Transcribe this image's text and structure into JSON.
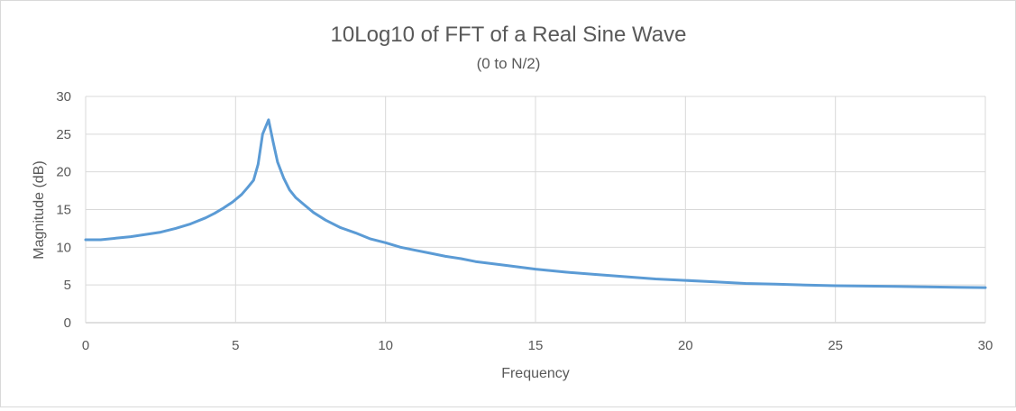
{
  "chart_data": {
    "type": "line",
    "title": "10Log10 of FFT of a Real Sine Wave",
    "subtitle": "(0 to N/2)",
    "xlabel": "Frequency",
    "ylabel": "Magnitude (dB)",
    "xlim": [
      0,
      30
    ],
    "ylim": [
      0,
      30
    ],
    "x_ticks": [
      "0",
      "5",
      "10",
      "15",
      "20",
      "25",
      "30"
    ],
    "y_ticks": [
      "0",
      "5",
      "10",
      "15",
      "20",
      "25",
      "30"
    ],
    "grid": true,
    "legend": "none",
    "series": [
      {
        "color": "#5b9bd5",
        "points": [
          [
            0,
            11.0
          ],
          [
            0.5,
            11.0
          ],
          [
            1.0,
            11.2
          ],
          [
            1.5,
            11.4
          ],
          [
            2.0,
            11.7
          ],
          [
            2.5,
            12.0
          ],
          [
            3.0,
            12.5
          ],
          [
            3.5,
            13.1
          ],
          [
            4.0,
            13.9
          ],
          [
            4.3,
            14.5
          ],
          [
            4.6,
            15.2
          ],
          [
            4.9,
            16.0
          ],
          [
            5.2,
            17.0
          ],
          [
            5.4,
            17.9
          ],
          [
            5.6,
            18.9
          ],
          [
            5.75,
            21.0
          ],
          [
            5.9,
            25.0
          ],
          [
            6.1,
            26.9
          ],
          [
            6.25,
            24.0
          ],
          [
            6.4,
            21.3
          ],
          [
            6.6,
            19.2
          ],
          [
            6.8,
            17.6
          ],
          [
            7.0,
            16.6
          ],
          [
            7.3,
            15.6
          ],
          [
            7.6,
            14.6
          ],
          [
            8.0,
            13.6
          ],
          [
            8.5,
            12.6
          ],
          [
            9.0,
            11.9
          ],
          [
            9.5,
            11.1
          ],
          [
            10.0,
            10.6
          ],
          [
            10.5,
            10.0
          ],
          [
            11.0,
            9.6
          ],
          [
            11.5,
            9.2
          ],
          [
            12.0,
            8.8
          ],
          [
            12.5,
            8.5
          ],
          [
            13.0,
            8.1
          ],
          [
            14.0,
            7.6
          ],
          [
            15.0,
            7.1
          ],
          [
            16.0,
            6.7
          ],
          [
            17.0,
            6.4
          ],
          [
            18.0,
            6.1
          ],
          [
            19.0,
            5.8
          ],
          [
            20.0,
            5.6
          ],
          [
            21.0,
            5.4
          ],
          [
            22.0,
            5.2
          ],
          [
            23.0,
            5.1
          ],
          [
            24.0,
            5.0
          ],
          [
            25.0,
            4.9
          ],
          [
            26.0,
            4.85
          ],
          [
            27.0,
            4.8
          ],
          [
            28.0,
            4.75
          ],
          [
            29.0,
            4.7
          ],
          [
            30.0,
            4.65
          ]
        ]
      }
    ]
  }
}
